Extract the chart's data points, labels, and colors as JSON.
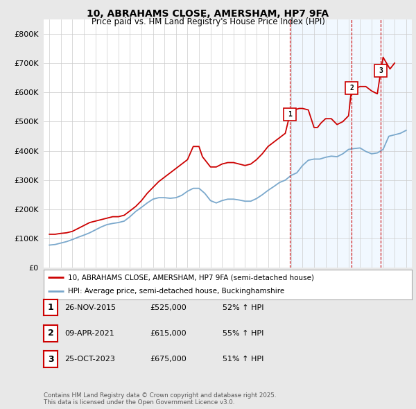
{
  "title": "10, ABRAHAMS CLOSE, AMERSHAM, HP7 9FA",
  "subtitle": "Price paid vs. HM Land Registry's House Price Index (HPI)",
  "bg_color": "#e8e8e8",
  "plot_bg_color": "#ffffff",
  "red_color": "#cc0000",
  "blue_color": "#7aa8cc",
  "dashed_color": "#cc0000",
  "ylim": [
    0,
    850000
  ],
  "yticks": [
    0,
    100000,
    200000,
    300000,
    400000,
    500000,
    600000,
    700000,
    800000
  ],
  "sale_points": [
    {
      "label": "1",
      "date_x": 2015.9,
      "price": 525000
    },
    {
      "label": "2",
      "date_x": 2021.27,
      "price": 615000
    },
    {
      "label": "3",
      "date_x": 2023.81,
      "price": 675000
    }
  ],
  "legend_entries": [
    {
      "label": "10, ABRAHAMS CLOSE, AMERSHAM, HP7 9FA (semi-detached house)",
      "color": "#cc0000"
    },
    {
      "label": "HPI: Average price, semi-detached house, Buckinghamshire",
      "color": "#7aa8cc"
    }
  ],
  "table_rows": [
    {
      "num": "1",
      "date": "26-NOV-2015",
      "price": "£525,000",
      "hpi": "52% ↑ HPI"
    },
    {
      "num": "2",
      "date": "09-APR-2021",
      "price": "£615,000",
      "hpi": "55% ↑ HPI"
    },
    {
      "num": "3",
      "date": "25-OCT-2023",
      "price": "£675,000",
      "hpi": "51% ↑ HPI"
    }
  ],
  "footer": "Contains HM Land Registry data © Crown copyright and database right 2025.\nThis data is licensed under the Open Government Licence v3.0.",
  "xmin": 1994.5,
  "xmax": 2026.5,
  "red_x": [
    1995,
    1995.5,
    1996,
    1996.5,
    1997,
    1997.5,
    1998,
    1998.5,
    1999,
    1999.5,
    2000,
    2000.5,
    2001,
    2001.5,
    2002,
    2002.5,
    2003,
    2003.5,
    2004,
    2004.5,
    2005,
    2005.5,
    2006,
    2006.5,
    2007,
    2007.5,
    2008,
    2008.3,
    2008.7,
    2009,
    2009.5,
    2010,
    2010.5,
    2011,
    2011.5,
    2012,
    2012.5,
    2013,
    2013.5,
    2014,
    2014.5,
    2015,
    2015.5,
    2015.9,
    2016.3,
    2016.7,
    2017,
    2017.5,
    2018,
    2018.3,
    2018.6,
    2019,
    2019.5,
    2020,
    2020.5,
    2021,
    2021.27,
    2021.7,
    2022,
    2022.5,
    2023,
    2023.5,
    2023.81,
    2024,
    2024.3,
    2024.6,
    2025
  ],
  "red_y": [
    115000,
    115000,
    118000,
    120000,
    125000,
    135000,
    145000,
    155000,
    160000,
    165000,
    170000,
    175000,
    175000,
    180000,
    195000,
    210000,
    230000,
    255000,
    275000,
    295000,
    310000,
    325000,
    340000,
    355000,
    370000,
    415000,
    415000,
    380000,
    360000,
    345000,
    345000,
    355000,
    360000,
    360000,
    355000,
    350000,
    355000,
    370000,
    390000,
    415000,
    430000,
    445000,
    460000,
    525000,
    540000,
    545000,
    545000,
    540000,
    480000,
    480000,
    495000,
    510000,
    510000,
    490000,
    500000,
    520000,
    615000,
    615000,
    620000,
    620000,
    605000,
    595000,
    675000,
    720000,
    700000,
    680000,
    700000
  ],
  "blue_x": [
    1995,
    1995.5,
    1996,
    1996.5,
    1997,
    1997.5,
    1998,
    1998.5,
    1999,
    1999.5,
    2000,
    2000.5,
    2001,
    2001.5,
    2002,
    2002.5,
    2003,
    2003.5,
    2004,
    2004.5,
    2005,
    2005.5,
    2006,
    2006.5,
    2007,
    2007.5,
    2008,
    2008.5,
    2009,
    2009.5,
    2010,
    2010.5,
    2011,
    2011.5,
    2012,
    2012.5,
    2013,
    2013.5,
    2014,
    2014.5,
    2015,
    2015.5,
    2016,
    2016.5,
    2017,
    2017.5,
    2018,
    2018.5,
    2019,
    2019.5,
    2020,
    2020.5,
    2021,
    2021.5,
    2022,
    2022.5,
    2023,
    2023.5,
    2024,
    2024.5,
    2025,
    2025.5,
    2026
  ],
  "blue_y": [
    78000,
    80000,
    85000,
    90000,
    97000,
    105000,
    112000,
    120000,
    130000,
    140000,
    148000,
    152000,
    155000,
    160000,
    175000,
    193000,
    207000,
    222000,
    235000,
    240000,
    240000,
    238000,
    240000,
    248000,
    262000,
    272000,
    272000,
    255000,
    230000,
    222000,
    230000,
    235000,
    235000,
    232000,
    228000,
    228000,
    237000,
    250000,
    265000,
    278000,
    292000,
    300000,
    316000,
    325000,
    350000,
    368000,
    372000,
    372000,
    378000,
    382000,
    380000,
    390000,
    405000,
    408000,
    410000,
    398000,
    390000,
    393000,
    405000,
    450000,
    455000,
    460000,
    470000
  ]
}
